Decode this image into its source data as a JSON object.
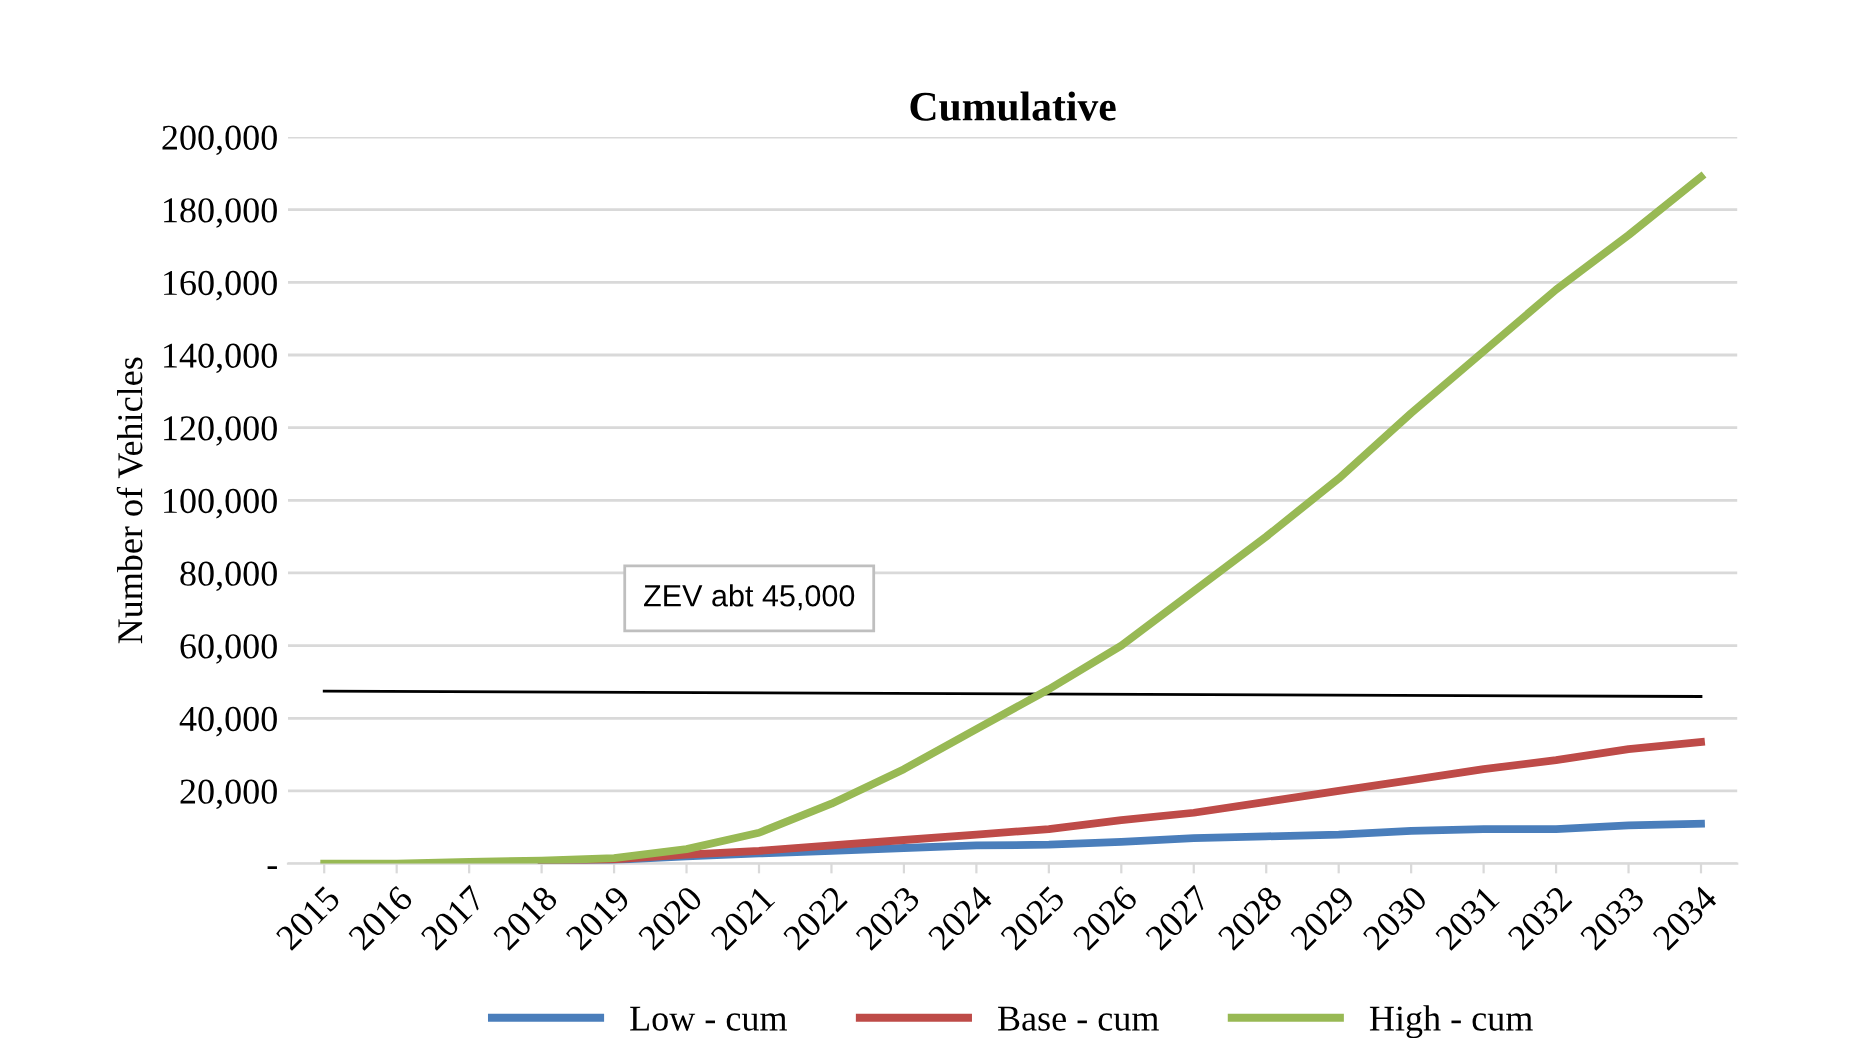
{
  "chart_data": {
    "type": "line",
    "title": "Cumulative",
    "ylabel": "Number of Vehicles",
    "x": [
      2015,
      2016,
      2017,
      2018,
      2019,
      2020,
      2021,
      2022,
      2023,
      2024,
      2025,
      2026,
      2027,
      2028,
      2029,
      2030,
      2031,
      2032,
      2033,
      2034
    ],
    "xlim": [
      2014.5,
      2034.5
    ],
    "xticks": [
      2015,
      2016,
      2017,
      2018,
      2019,
      2020,
      2021,
      2022,
      2023,
      2024,
      2025,
      2026,
      2027,
      2028,
      2029,
      2030,
      2031,
      2032,
      2033,
      2034
    ],
    "ylim": [
      0,
      200000
    ],
    "yticks": [
      {
        "value": 0,
        "label": "-"
      },
      {
        "value": 20000,
        "label": "20,000"
      },
      {
        "value": 40000,
        "label": "40,000"
      },
      {
        "value": 60000,
        "label": "60,000"
      },
      {
        "value": 80000,
        "label": "80,000"
      },
      {
        "value": 100000,
        "label": "100,000"
      },
      {
        "value": 120000,
        "label": "120,000"
      },
      {
        "value": 140000,
        "label": "140,000"
      },
      {
        "value": 160000,
        "label": "160,000"
      },
      {
        "value": 180000,
        "label": "180,000"
      },
      {
        "value": 200000,
        "label": "200,000"
      }
    ],
    "series": [
      {
        "name": "Low - cum",
        "color": "#4a7ebb",
        "values": [
          null,
          null,
          null,
          500,
          1000,
          2000,
          2800,
          3500,
          4300,
          5000,
          5200,
          6000,
          7000,
          7500,
          8000,
          9000,
          9500,
          9500,
          10500,
          11000
        ]
      },
      {
        "name": "Base - cum",
        "color": "#be4b48",
        "values": [
          null,
          null,
          null,
          600,
          1200,
          2500,
          3500,
          5000,
          6500,
          8000,
          9500,
          12000,
          14000,
          17000,
          20000,
          23000,
          26000,
          28500,
          31500,
          33500
        ]
      },
      {
        "name": "High - cum",
        "color": "#98b954",
        "values": [
          0,
          0,
          500,
          800,
          1500,
          4000,
          8500,
          16500,
          26000,
          37000,
          48000,
          60000,
          75000,
          90000,
          106000,
          124000,
          141000,
          158000,
          173000,
          189000
        ]
      },
      {
        "color": "#000000",
        "x": [
          2015,
          2034
        ],
        "values": [
          47500,
          46000
        ]
      }
    ],
    "annotations": [
      "ZEV abt 45,000"
    ],
    "grid": "y",
    "legend": "bottom",
    "marker": "none",
    "line_style": "solid"
  }
}
